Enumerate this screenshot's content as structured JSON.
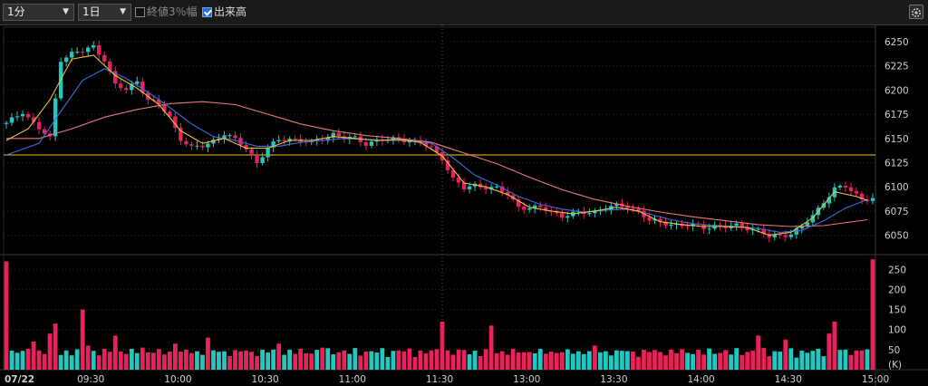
{
  "toolbar": {
    "interval_label": "1分",
    "range_label": "1日",
    "pct_checkbox_label": "終値3％幅",
    "pct_checked": false,
    "volume_checkbox_label": "出来高",
    "volume_checked": true
  },
  "colors": {
    "background": "#000000",
    "up": "#20c8c0",
    "down": "#e8225a",
    "ma_short": "#f0c040",
    "ma_mid": "#3b6fe0",
    "ma_long": "#e87878",
    "ref_line": "#c8a020",
    "grid": "#2a2a2a"
  },
  "chart_data": [
    {
      "type": "line",
      "subtype": "intraday-candlestick",
      "ylim": [
        6030,
        6265
      ],
      "y_ticks": [
        6050,
        6075,
        6100,
        6125,
        6150,
        6175,
        6200,
        6225,
        6250
      ],
      "x_start_label": "07/22",
      "x_tick_labels": [
        "09:30",
        "10:00",
        "10:30",
        "11:00",
        "11:30",
        "13:00",
        "13:30",
        "14:00",
        "14:30",
        "15:00"
      ],
      "reference_line": 6133,
      "price_path": [
        [
          0,
          6165
        ],
        [
          3,
          6178
        ],
        [
          6,
          6160
        ],
        [
          8,
          6150
        ],
        [
          10,
          6232
        ],
        [
          12,
          6238
        ],
        [
          14,
          6240
        ],
        [
          16,
          6245
        ],
        [
          18,
          6232
        ],
        [
          20,
          6205
        ],
        [
          22,
          6200
        ],
        [
          24,
          6210
        ],
        [
          26,
          6190
        ],
        [
          28,
          6185
        ],
        [
          30,
          6172
        ],
        [
          32,
          6150
        ],
        [
          34,
          6140
        ],
        [
          36,
          6142
        ],
        [
          38,
          6148
        ],
        [
          40,
          6155
        ],
        [
          42,
          6148
        ],
        [
          44,
          6140
        ],
        [
          46,
          6125
        ],
        [
          48,
          6140
        ],
        [
          50,
          6148
        ],
        [
          52,
          6150
        ],
        [
          54,
          6148
        ],
        [
          56,
          6145
        ],
        [
          58,
          6150
        ],
        [
          60,
          6155
        ],
        [
          62,
          6150
        ],
        [
          64,
          6150
        ],
        [
          66,
          6145
        ],
        [
          68,
          6148
        ],
        [
          70,
          6148
        ],
        [
          72,
          6150
        ],
        [
          74,
          6148
        ],
        [
          76,
          6145
        ],
        [
          78,
          6140
        ],
        [
          80,
          6130
        ],
        [
          82,
          6108
        ],
        [
          84,
          6098
        ],
        [
          86,
          6102
        ],
        [
          88,
          6100
        ],
        [
          90,
          6098
        ],
        [
          92,
          6092
        ],
        [
          94,
          6080
        ],
        [
          96,
          6078
        ],
        [
          98,
          6078
        ],
        [
          100,
          6075
        ],
        [
          102,
          6070
        ],
        [
          104,
          6072
        ],
        [
          106,
          6073
        ],
        [
          108,
          6075
        ],
        [
          110,
          6078
        ],
        [
          112,
          6080
        ],
        [
          114,
          6080
        ],
        [
          116,
          6075
        ],
        [
          118,
          6065
        ],
        [
          120,
          6063
        ],
        [
          122,
          6062
        ],
        [
          124,
          6060
        ],
        [
          126,
          6060
        ],
        [
          128,
          6058
        ],
        [
          130,
          6060
        ],
        [
          132,
          6058
        ],
        [
          134,
          6060
        ],
        [
          136,
          6058
        ],
        [
          138,
          6055
        ],
        [
          140,
          6048
        ],
        [
          142,
          6050
        ],
        [
          144,
          6052
        ],
        [
          146,
          6058
        ],
        [
          148,
          6070
        ],
        [
          150,
          6085
        ],
        [
          152,
          6098
        ],
        [
          154,
          6100
        ],
        [
          156,
          6092
        ],
        [
          157,
          6088
        ]
      ],
      "ma_short": [
        [
          0,
          6148
        ],
        [
          4,
          6160
        ],
        [
          8,
          6190
        ],
        [
          12,
          6232
        ],
        [
          16,
          6236
        ],
        [
          20,
          6215
        ],
        [
          24,
          6202
        ],
        [
          28,
          6185
        ],
        [
          32,
          6158
        ],
        [
          36,
          6145
        ],
        [
          40,
          6150
        ],
        [
          44,
          6140
        ],
        [
          48,
          6140
        ],
        [
          52,
          6148
        ],
        [
          56,
          6148
        ],
        [
          60,
          6152
        ],
        [
          64,
          6150
        ],
        [
          68,
          6148
        ],
        [
          72,
          6149
        ],
        [
          76,
          6146
        ],
        [
          80,
          6132
        ],
        [
          84,
          6104
        ],
        [
          88,
          6100
        ],
        [
          92,
          6092
        ],
        [
          96,
          6079
        ],
        [
          100,
          6075
        ],
        [
          104,
          6072
        ],
        [
          108,
          6075
        ],
        [
          112,
          6079
        ],
        [
          116,
          6075
        ],
        [
          120,
          6064
        ],
        [
          124,
          6061
        ],
        [
          128,
          6059
        ],
        [
          132,
          6059
        ],
        [
          136,
          6058
        ],
        [
          140,
          6050
        ],
        [
          144,
          6053
        ],
        [
          148,
          6068
        ],
        [
          152,
          6095
        ],
        [
          156,
          6090
        ],
        [
          158,
          6086
        ]
      ],
      "ma_mid": [
        [
          0,
          6133
        ],
        [
          6,
          6145
        ],
        [
          10,
          6178
        ],
        [
          14,
          6210
        ],
        [
          18,
          6222
        ],
        [
          22,
          6212
        ],
        [
          26,
          6198
        ],
        [
          30,
          6182
        ],
        [
          34,
          6165
        ],
        [
          38,
          6152
        ],
        [
          42,
          6148
        ],
        [
          46,
          6142
        ],
        [
          50,
          6142
        ],
        [
          54,
          6146
        ],
        [
          58,
          6148
        ],
        [
          62,
          6150
        ],
        [
          66,
          6149
        ],
        [
          70,
          6148
        ],
        [
          74,
          6148
        ],
        [
          78,
          6145
        ],
        [
          82,
          6130
        ],
        [
          86,
          6112
        ],
        [
          90,
          6102
        ],
        [
          94,
          6090
        ],
        [
          98,
          6082
        ],
        [
          102,
          6077
        ],
        [
          106,
          6074
        ],
        [
          110,
          6076
        ],
        [
          114,
          6077
        ],
        [
          118,
          6072
        ],
        [
          122,
          6066
        ],
        [
          126,
          6062
        ],
        [
          130,
          6060
        ],
        [
          134,
          6059
        ],
        [
          138,
          6057
        ],
        [
          142,
          6053
        ],
        [
          146,
          6055
        ],
        [
          150,
          6065
        ],
        [
          154,
          6078
        ],
        [
          158,
          6087
        ]
      ],
      "ma_long": [
        [
          0,
          6150
        ],
        [
          6,
          6150
        ],
        [
          12,
          6160
        ],
        [
          18,
          6172
        ],
        [
          24,
          6180
        ],
        [
          30,
          6186
        ],
        [
          36,
          6188
        ],
        [
          42,
          6185
        ],
        [
          48,
          6175
        ],
        [
          54,
          6165
        ],
        [
          60,
          6158
        ],
        [
          66,
          6153
        ],
        [
          72,
          6150
        ],
        [
          78,
          6146
        ],
        [
          84,
          6135
        ],
        [
          90,
          6124
        ],
        [
          96,
          6110
        ],
        [
          102,
          6097
        ],
        [
          108,
          6087
        ],
        [
          114,
          6080
        ],
        [
          120,
          6074
        ],
        [
          126,
          6069
        ],
        [
          132,
          6065
        ],
        [
          138,
          6061
        ],
        [
          144,
          6059
        ],
        [
          150,
          6060
        ],
        [
          158,
          6066
        ]
      ]
    },
    {
      "type": "bar",
      "subtype": "volume",
      "ylim": [
        0,
        280
      ],
      "y_ticks": [
        50,
        100,
        150,
        200,
        250
      ],
      "unit_label": "(K)",
      "x_count": 160,
      "spikes": [
        [
          0,
          270
        ],
        [
          5,
          70
        ],
        [
          8,
          90
        ],
        [
          9,
          115
        ],
        [
          14,
          150
        ],
        [
          15,
          60
        ],
        [
          20,
          85
        ],
        [
          25,
          55
        ],
        [
          31,
          65
        ],
        [
          37,
          80
        ],
        [
          50,
          65
        ],
        [
          58,
          55
        ],
        [
          72,
          48
        ],
        [
          80,
          120
        ],
        [
          89,
          110
        ],
        [
          100,
          45
        ],
        [
          108,
          60
        ],
        [
          138,
          85
        ],
        [
          143,
          75
        ],
        [
          151,
          90
        ],
        [
          152,
          120
        ],
        [
          157,
          48
        ],
        [
          159,
          275
        ]
      ],
      "base": 30
    }
  ]
}
